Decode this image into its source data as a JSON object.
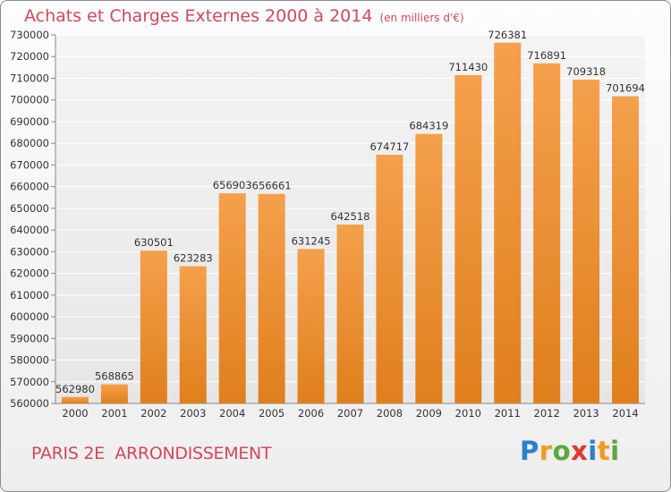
{
  "header": {
    "title": "Achats et Charges Externes 2000 à 2014",
    "subtitle": "(en milliers d'€)"
  },
  "footer": {
    "location": "PARIS 2E  ARRONDISSEMENT",
    "logo_text": "Proxiti"
  },
  "colors": {
    "bar": "#f4a04c",
    "bar_dark": "#e07f1c",
    "title": "#d2485a"
  },
  "chart_data": {
    "type": "bar",
    "title": "Achats et Charges Externes 2000 à 2014",
    "subtitle": "(en milliers d'€)",
    "categories": [
      "2000",
      "2001",
      "2002",
      "2003",
      "2004",
      "2005",
      "2006",
      "2007",
      "2008",
      "2009",
      "2010",
      "2011",
      "2012",
      "2013",
      "2014"
    ],
    "values": [
      562980,
      568865,
      630501,
      623283,
      656903,
      656661,
      631245,
      642518,
      674717,
      684319,
      711430,
      726381,
      716891,
      709318,
      701694
    ],
    "data_labels": [
      "562980",
      "568865",
      "630501",
      "623283",
      "656903",
      "656661",
      "631245",
      "642518",
      "674717",
      "684319",
      "711430",
      "726381",
      "716891",
      "709318",
      "701694"
    ],
    "ylim": [
      560000,
      730000
    ],
    "yticks": [
      560000,
      570000,
      580000,
      590000,
      600000,
      610000,
      620000,
      630000,
      640000,
      650000,
      660000,
      670000,
      680000,
      690000,
      700000,
      710000,
      720000,
      730000
    ],
    "ytick_labels": [
      "560000",
      "570000",
      "580000",
      "590000",
      "600000",
      "610000",
      "620000",
      "630000",
      "640000",
      "650000",
      "660000",
      "670000",
      "680000",
      "690000",
      "700000",
      "710000",
      "720000",
      "730000"
    ],
    "grid": true,
    "xlabel": "",
    "ylabel": ""
  }
}
